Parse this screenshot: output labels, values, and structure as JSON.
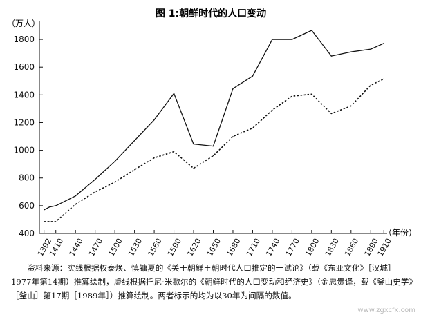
{
  "chart_data": {
    "type": "line",
    "title": "图 1:朝鲜时代的人口变动",
    "y_unit": "（万人）",
    "x_unit": "（年份）",
    "categories": [
      "1392",
      "1410",
      "1440",
      "1470",
      "1500",
      "1530",
      "1560",
      "1590",
      "1620",
      "1650",
      "1680",
      "1710",
      "1740",
      "1770",
      "1800",
      "1830",
      "1860",
      "1890",
      "1910"
    ],
    "yticks": [
      400,
      600,
      800,
      1000,
      1200,
      1400,
      1600,
      1800
    ],
    "ylim": [
      400,
      1900
    ],
    "xlim": [
      1385,
      1915
    ],
    "grid": false,
    "legend": "none",
    "series": [
      {
        "style": "solid",
        "x": [
          1392,
          1400,
          1410,
          1440,
          1470,
          1500,
          1530,
          1560,
          1590,
          1620,
          1650,
          1680,
          1710,
          1740,
          1770,
          1800,
          1830,
          1860,
          1890,
          1910
        ],
        "values": [
          570,
          590,
          600,
          670,
          790,
          920,
          1070,
          1220,
          1410,
          1045,
          1030,
          1445,
          1535,
          1800,
          1800,
          1865,
          1680,
          1710,
          1730,
          1772
        ]
      },
      {
        "style": "dotted",
        "x": [
          1392,
          1400,
          1410,
          1440,
          1470,
          1500,
          1530,
          1560,
          1590,
          1620,
          1650,
          1680,
          1710,
          1740,
          1770,
          1800,
          1830,
          1860,
          1890,
          1910
        ],
        "values": [
          485,
          485,
          485,
          610,
          700,
          770,
          860,
          945,
          990,
          870,
          960,
          1100,
          1160,
          1290,
          1390,
          1405,
          1265,
          1320,
          1470,
          1515
        ]
      }
    ]
  },
  "caption": "资料来源：实线根据权泰焕、慎镛夏的《关于朝鲜王朝时代人口推定的一试论》（载《东亚文化》［汉城］1977年第14期）推算绘制，虚线根据托尼·米歇尔的《朝鲜时代的人口变动和经济史》（金忠贵译，载《釜山史学》［釜山］第17期［1989年］）推算绘制。两者标示的均为以30年为间隔的数值。",
  "watermark": "www.zgxcfx.com",
  "colors": {
    "line": "#111111",
    "axis": "#111111",
    "text": "#111111"
  }
}
